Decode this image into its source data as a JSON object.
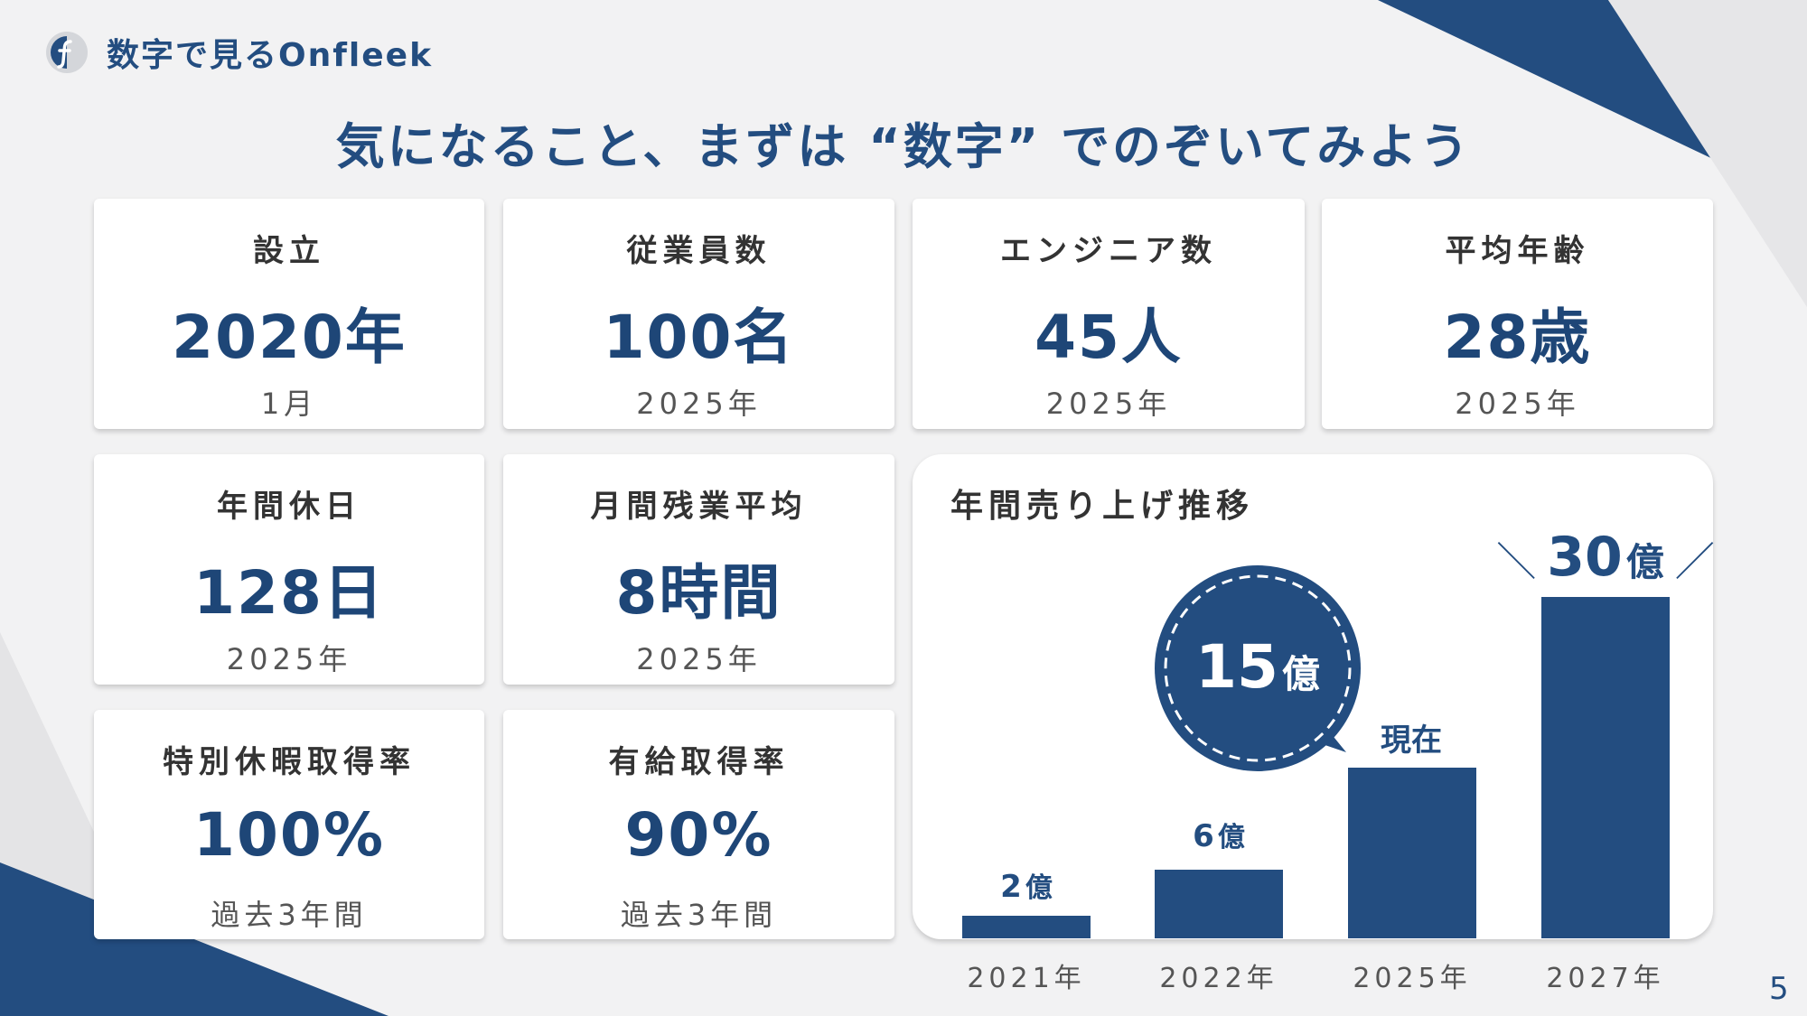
{
  "header": {
    "brand_title": "数字で見るOnfleek",
    "headline": "気になること、まずは “数字” でのぞいてみよう"
  },
  "stats": [
    {
      "label": "設立",
      "value": "2020年",
      "note": "1月"
    },
    {
      "label": "従業員数",
      "value": "100名",
      "note": "2025年"
    },
    {
      "label": "エンジニア数",
      "value": "45人",
      "note": "2025年"
    },
    {
      "label": "平均年齢",
      "value": "28歳",
      "note": "2025年"
    },
    {
      "label": "年間休日",
      "value": "128日",
      "note": "2025年"
    },
    {
      "label": "月間残業平均",
      "value": "8時間",
      "note": "2025年"
    },
    {
      "label": "特別休暇取得率",
      "value": "100%",
      "note": "過去3年間"
    },
    {
      "label": "有給取得率",
      "value": "90%",
      "note": "過去3年間"
    }
  ],
  "chart_data": {
    "type": "bar",
    "title": "年間売り上げ推移",
    "categories": [
      "2021年",
      "2022年",
      "2025年",
      "2027年"
    ],
    "values": [
      2,
      6,
      15,
      30
    ],
    "unit": "億",
    "ylim": [
      0,
      30
    ],
    "grid": false,
    "legend": "none",
    "annotations": {
      "current": "現在",
      "target_left": "＼",
      "target_right": "／"
    }
  },
  "page_number": "5",
  "colors": {
    "accent": "#234d80",
    "background": "#f2f2f3"
  }
}
